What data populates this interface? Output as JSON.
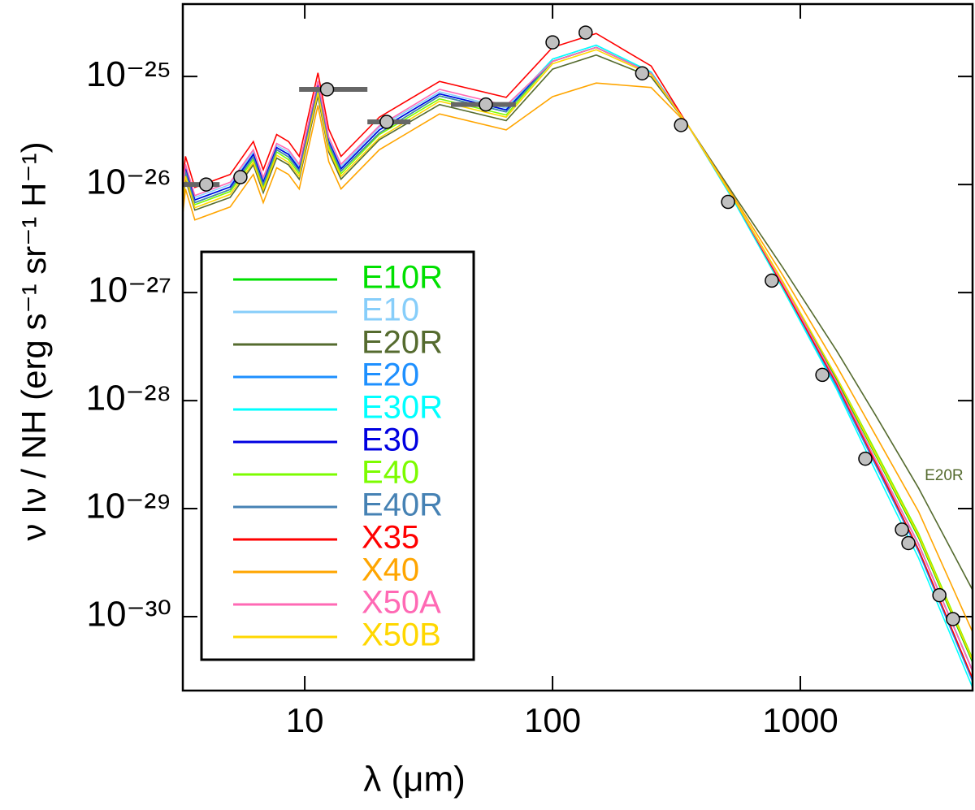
{
  "chart_data": {
    "type": "line",
    "x_label": "λ (μm)",
    "y_label": "ν Iν / NH (erg s⁻¹ sr⁻¹ H⁻¹)",
    "xscale": "log",
    "yscale": "log",
    "xlim": [
      3.22,
      4955
    ],
    "ylim": [
      2.07e-31,
      4.68e-25
    ],
    "xticks": [
      10,
      100,
      1000
    ],
    "yticks": [
      {
        "value": 1e-25,
        "label": "10⁻²⁵"
      },
      {
        "value": 1e-26,
        "label": "10⁻²⁶"
      },
      {
        "value": 1e-27,
        "label": "10⁻²⁷"
      },
      {
        "value": 1e-28,
        "label": "10⁻²⁸"
      },
      {
        "value": 1e-29,
        "label": "10⁻²⁹"
      },
      {
        "value": 1e-30,
        "label": "10⁻³⁰"
      }
    ],
    "legend": "lower left",
    "x": [
      3.2,
      3.3,
      3.6,
      5,
      6.2,
      6.8,
      7.7,
      8.6,
      9.5,
      11.3,
      12.5,
      14,
      20,
      35,
      65,
      100,
      150,
      250,
      350,
      550,
      850,
      1400,
      2000,
      3000,
      5000
    ],
    "series": [
      {
        "name": "E10R",
        "color": "#00e000",
        "values": [
          6.8e-27,
          1.33e-26,
          6.8e-27,
          9e-27,
          1.8e-26,
          1e-26,
          2.1e-26,
          1.8e-26,
          1.33e-26,
          7.9e-26,
          2.4e-26,
          1.33e-26,
          3e-26,
          6.6e-26,
          4.7e-26,
          1.38e-25,
          1.86e-25,
          1.07e-25,
          3.6e-26,
          6.8e-27,
          1.2e-27,
          1.58e-28,
          3.2e-29,
          5.4e-30,
          3.6e-31
        ]
      },
      {
        "name": "E10",
        "color": "#87cefa",
        "values": [
          7.6e-27,
          1.47e-26,
          7.6e-27,
          1e-26,
          2e-26,
          1.1e-26,
          2.3e-26,
          2e-26,
          1.47e-26,
          8.7e-26,
          2.6e-26,
          1.47e-26,
          3.4e-26,
          7.2e-26,
          5.1e-26,
          1.45e-25,
          1.95e-25,
          1.1e-25,
          3.6e-26,
          6.8e-27,
          1.2e-27,
          1.5e-28,
          2.9e-29,
          4.7e-30,
          3e-31
        ]
      },
      {
        "name": "E20R",
        "color": "#556b2f",
        "values": [
          5.8e-27,
          1.12e-26,
          5.8e-27,
          7.6e-27,
          1.52e-26,
          8.4e-27,
          1.76e-26,
          1.52e-26,
          1.12e-26,
          6.6e-26,
          2e-26,
          1.12e-26,
          2.6e-26,
          5.5e-26,
          3.9e-26,
          1.17e-25,
          1.58e-25,
          9.9e-26,
          3.6e-26,
          7.5e-27,
          1.7e-27,
          2.9e-28,
          7.5e-29,
          1.55e-29,
          1.7e-30
        ]
      },
      {
        "name": "E20",
        "color": "#1e90ff",
        "values": [
          7.2e-27,
          1.4e-26,
          7.2e-27,
          9.5e-27,
          1.9e-26,
          1.05e-26,
          2.2e-26,
          1.9e-26,
          1.4e-26,
          8.3e-26,
          2.5e-26,
          1.4e-26,
          3.2e-26,
          6.9e-26,
          4.9e-26,
          1.38e-25,
          1.86e-25,
          1.07e-25,
          3.6e-26,
          6.8e-27,
          1.14e-27,
          1.35e-28,
          2.6e-29,
          4e-30,
          2.4e-31
        ]
      },
      {
        "name": "E30R",
        "color": "#00ffff",
        "values": [
          7.2e-27,
          1.4e-26,
          7.2e-27,
          9.5e-27,
          1.9e-26,
          1.05e-26,
          2.2e-26,
          1.9e-26,
          1.4e-26,
          8.3e-26,
          2.5e-26,
          1.4e-26,
          3.2e-26,
          6.9e-26,
          4.9e-26,
          1.45e-25,
          1.95e-25,
          1.1e-25,
          3.6e-26,
          6.5e-27,
          1.08e-27,
          1.28e-28,
          2.3e-29,
          3.5e-30,
          2.1e-31
        ]
      },
      {
        "name": "E30",
        "color": "#0000e0",
        "values": [
          7.2e-27,
          1.4e-26,
          7.2e-27,
          9.5e-27,
          1.9e-26,
          1.05e-26,
          2.2e-26,
          1.9e-26,
          1.4e-26,
          8.3e-26,
          2.5e-26,
          1.4e-26,
          3.2e-26,
          6.9e-26,
          4.9e-26,
          1.38e-25,
          1.86e-25,
          1.07e-25,
          3.6e-26,
          6.8e-27,
          1.2e-27,
          1.5e-28,
          2.9e-29,
          4.7e-30,
          3e-31
        ]
      },
      {
        "name": "E40",
        "color": "#7cfc00",
        "values": [
          6.5e-27,
          1.26e-26,
          6.5e-27,
          8.6e-27,
          1.7e-26,
          9.5e-27,
          2e-26,
          1.7e-26,
          1.26e-26,
          7.5e-26,
          2.25e-26,
          1.26e-26,
          2.9e-26,
          6.2e-26,
          4.4e-26,
          1.38e-25,
          1.86e-25,
          1.07e-25,
          3.6e-26,
          6.8e-27,
          1.26e-27,
          1.65e-28,
          3.5e-29,
          5.9e-30,
          3.9e-31
        ]
      },
      {
        "name": "E40R",
        "color": "#4682b4",
        "values": [
          6.8e-27,
          1.33e-26,
          6.8e-27,
          9e-27,
          1.8e-26,
          1e-26,
          2.1e-26,
          1.8e-26,
          1.33e-26,
          7.9e-26,
          2.4e-26,
          1.33e-26,
          3e-26,
          6.6e-26,
          4.7e-26,
          1.38e-25,
          1.86e-25,
          1.07e-25,
          3.6e-26,
          6.8e-27,
          1.2e-27,
          1.5e-28,
          2.9e-29,
          4.7e-30,
          3e-31
        ]
      },
      {
        "name": "X35",
        "color": "#ff0000",
        "values": [
          9.4e-27,
          1.82e-26,
          9.4e-27,
          1.24e-26,
          2.5e-26,
          1.37e-26,
          2.9e-26,
          2.5e-26,
          1.82e-26,
          1.08e-25,
          3.25e-26,
          1.82e-26,
          4.2e-26,
          9e-26,
          6.4e-26,
          1.86e-25,
          2.5e-25,
          1.25e-25,
          3.6e-26,
          6.8e-27,
          1.14e-27,
          1.43e-28,
          2.75e-29,
          4.2e-30,
          2.55e-31
        ]
      },
      {
        "name": "X40",
        "color": "#ffa500",
        "values": [
          4.7e-27,
          9.1e-27,
          4.7e-27,
          6.2e-27,
          1.24e-26,
          6.8e-27,
          1.43e-26,
          1.24e-26,
          9.1e-27,
          5.4e-26,
          1.63e-26,
          9.1e-27,
          2.1e-26,
          4.5e-26,
          3.2e-26,
          6.5e-26,
          8.7e-26,
          7.9e-26,
          3.6e-26,
          7.1e-27,
          1.44e-27,
          2.1e-28,
          4.9e-29,
          9.4e-30,
          6.9e-31
        ]
      },
      {
        "name": "X50A",
        "color": "#ff69b4",
        "values": [
          7.9e-27,
          1.54e-26,
          7.9e-27,
          1.05e-26,
          2.1e-26,
          1.16e-26,
          2.4e-26,
          2.1e-26,
          1.54e-26,
          9.1e-26,
          2.75e-26,
          1.54e-26,
          3.5e-26,
          7.6e-26,
          5.4e-26,
          1.38e-25,
          1.86e-25,
          1.07e-25,
          3.6e-26,
          6.8e-27,
          1.2e-27,
          1.5e-28,
          2.9e-29,
          4.7e-30,
          3e-31
        ]
      },
      {
        "name": "X50B",
        "color": "#ffd700",
        "values": [
          6.1e-27,
          1.19e-26,
          6.1e-27,
          8.1e-27,
          1.6e-26,
          8.9e-27,
          1.87e-26,
          1.6e-26,
          1.19e-26,
          7.1e-26,
          2.1e-26,
          1.19e-26,
          2.7e-26,
          5.9e-26,
          4.2e-26,
          1.31e-25,
          1.77e-25,
          1.04e-25,
          3.6e-26,
          6.8e-27,
          1.26e-27,
          1.65e-28,
          3.3e-29,
          5.6e-30,
          3.75e-31
        ]
      }
    ],
    "observations": {
      "color": "#c0c0c0",
      "x": [
        4.0,
        5.5,
        12.3,
        21.4,
        53.8,
        100,
        136,
        230,
        330,
        511,
        767,
        1227,
        1829,
        2570,
        2730,
        3640,
        4130
      ],
      "values": [
        1e-26,
        1.17e-26,
        7.6e-26,
        3.8e-26,
        5.5e-26,
        2.07e-25,
        2.55e-25,
        1.07e-25,
        3.55e-26,
        6.9e-27,
        1.29e-27,
        1.73e-28,
        2.9e-29,
        6.4e-30,
        4.8e-30,
        1.58e-30,
        9.5e-31
      ],
      "x_lo": [
        3.22,
        null,
        9.49,
        17.9,
        38.9,
        null,
        null,
        null,
        null,
        null,
        null,
        null,
        null,
        null,
        null,
        null,
        null
      ],
      "x_hi": [
        4.53,
        null,
        17.9,
        26.7,
        71.1,
        null,
        null,
        null,
        null,
        null,
        null,
        null,
        null,
        null,
        null,
        null,
        null
      ]
    },
    "annotations": [
      {
        "text": "E20R",
        "color": "#556b2f",
        "x": 3800,
        "y": 2e-29
      }
    ]
  }
}
